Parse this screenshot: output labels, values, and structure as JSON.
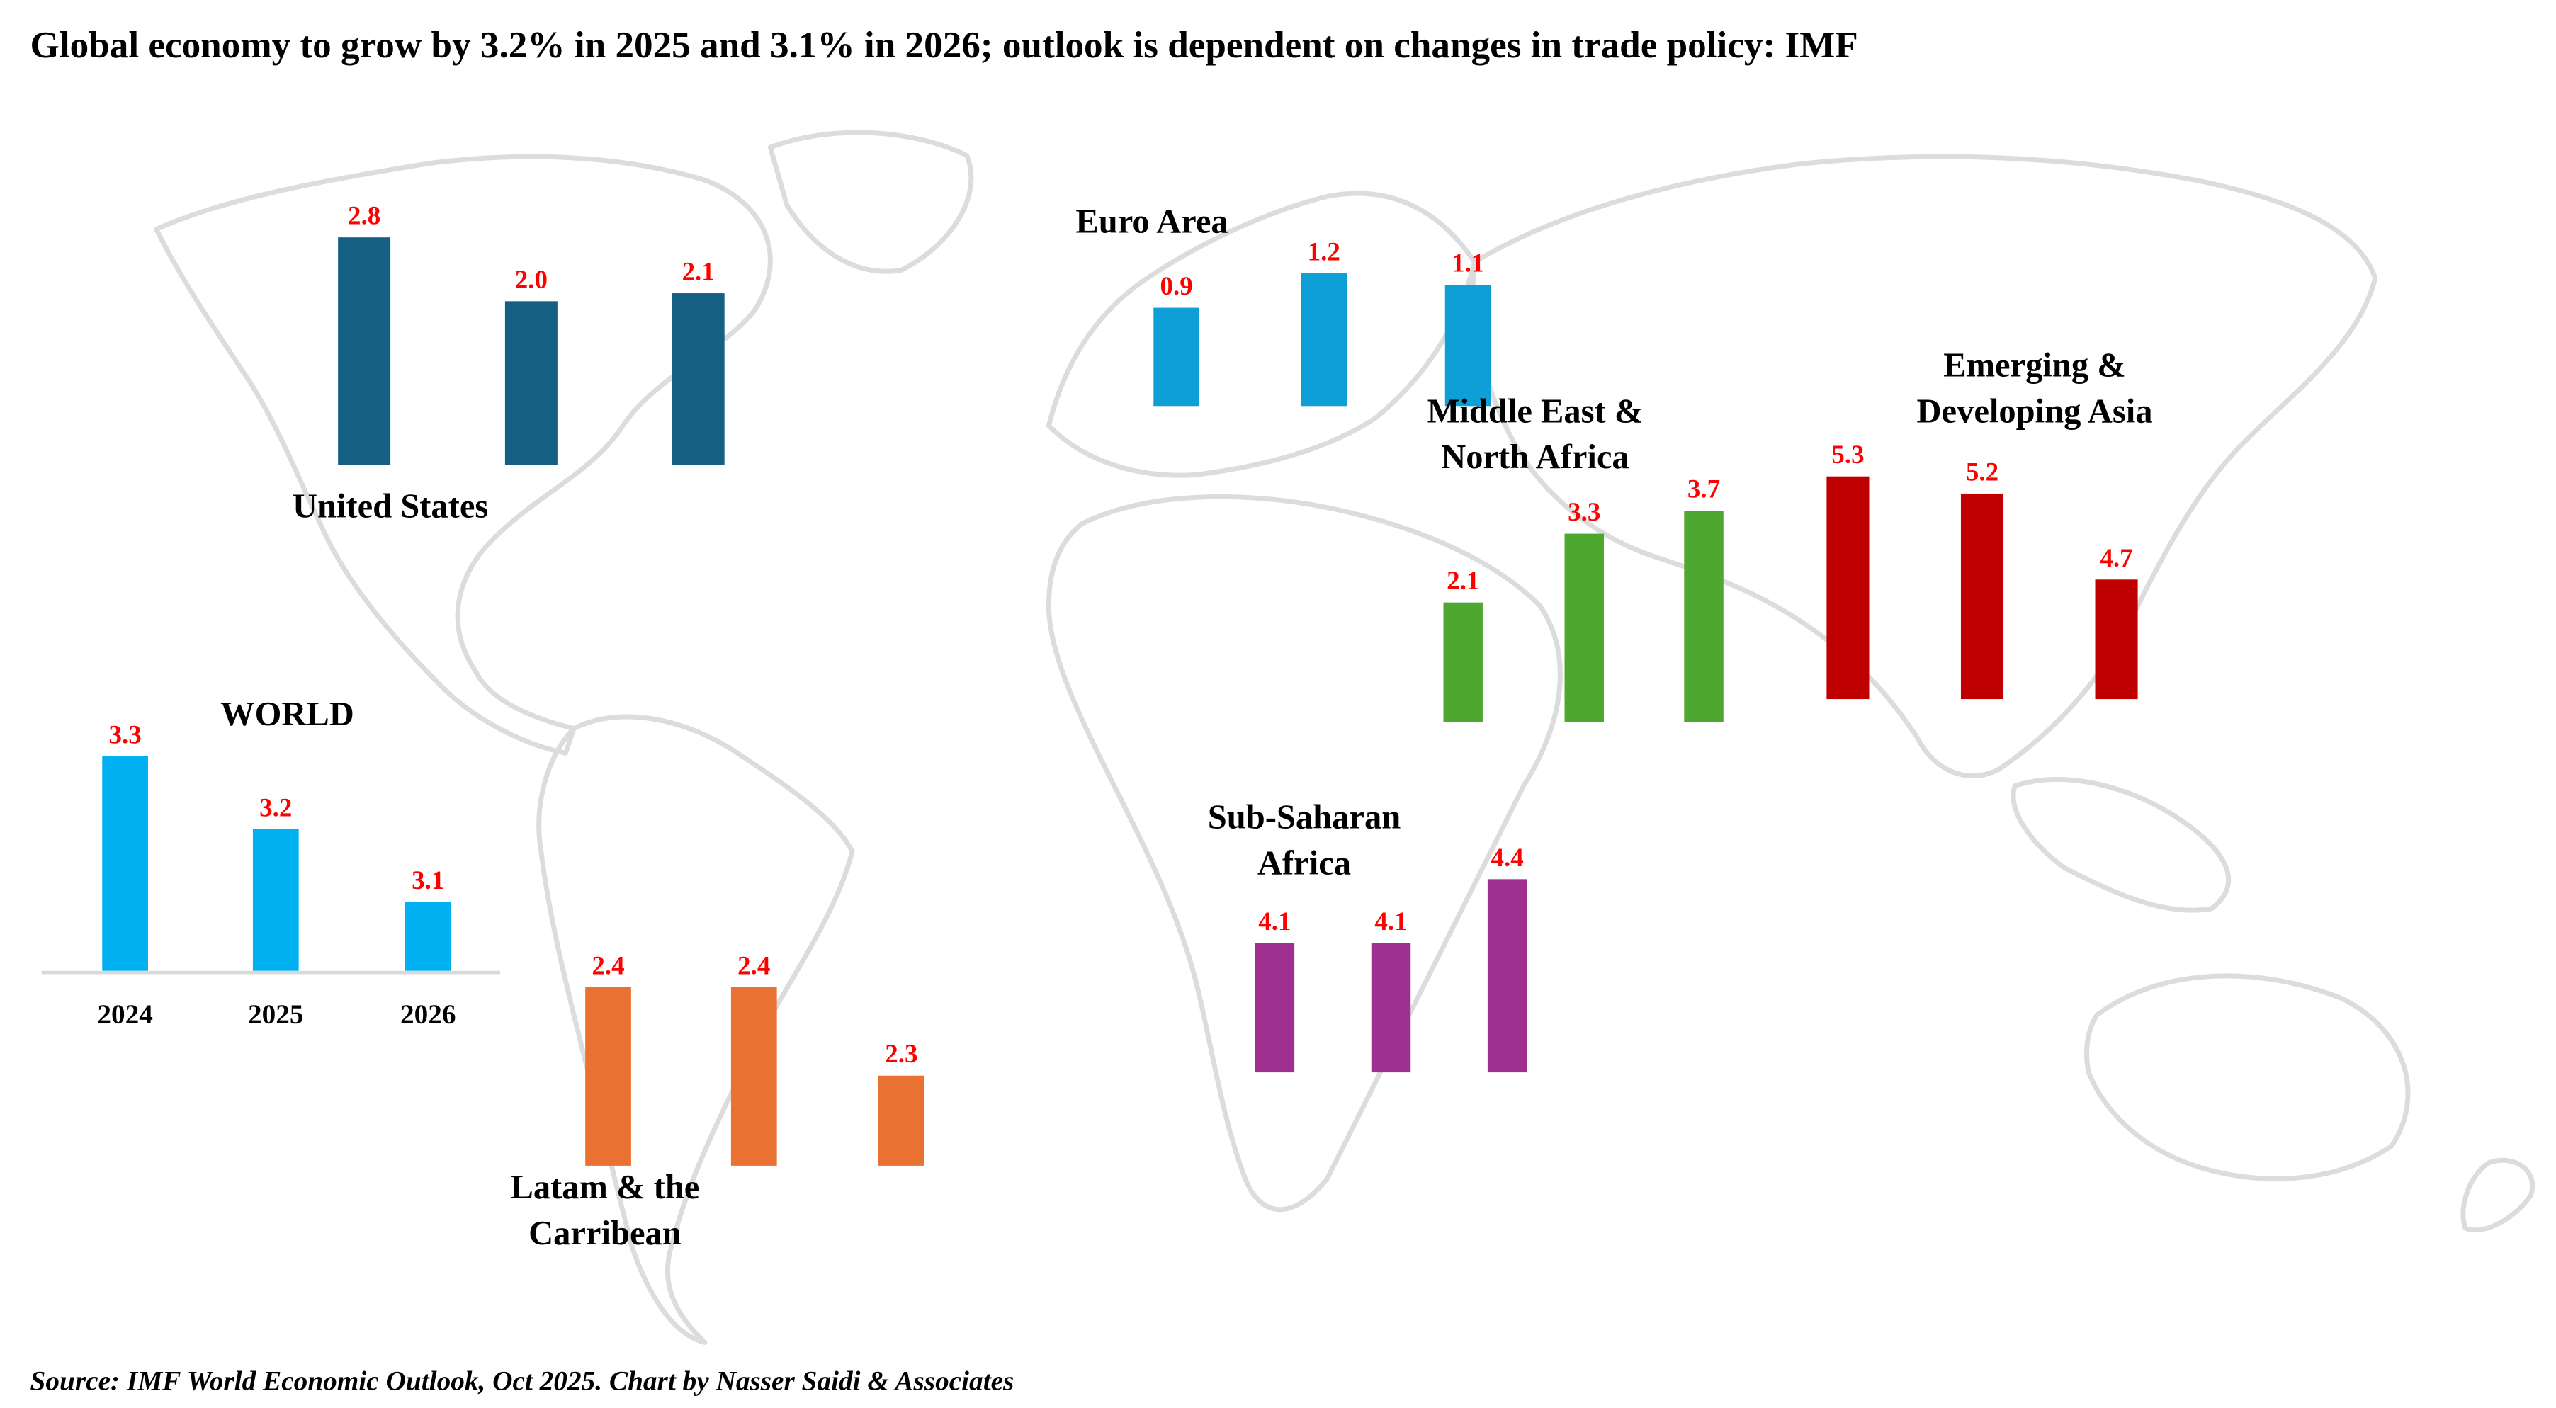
{
  "title": "Global economy to grow by 3.2% in 2025 and 3.1% in 2026; outlook is dependent on changes in trade policy: IMF",
  "source": "Source: IMF World Economic Outlook, Oct 2025. Chart by Nasser Saidi & Associates",
  "colors": {
    "label": "#FF0000",
    "map": "#dcdcdc"
  },
  "chart_data": [
    {
      "type": "bar",
      "region": "WORLD",
      "categories": [
        "2024",
        "2025",
        "2026"
      ],
      "values": [
        3.3,
        3.2,
        3.1
      ],
      "color": "#00B0F0",
      "show_axis": true
    },
    {
      "type": "bar",
      "region": "United States",
      "categories": [
        "2024",
        "2025",
        "2026"
      ],
      "values": [
        2.8,
        2.0,
        2.1
      ],
      "color": "#156082"
    },
    {
      "type": "bar",
      "region": "Euro Area",
      "categories": [
        "2024",
        "2025",
        "2026"
      ],
      "values": [
        0.9,
        1.2,
        1.1
      ],
      "color": "#0E9FD6"
    },
    {
      "type": "bar",
      "region": "Middle East & North Africa",
      "categories": [
        "2024",
        "2025",
        "2026"
      ],
      "values": [
        2.1,
        3.3,
        3.7
      ],
      "color": "#4EA72E"
    },
    {
      "type": "bar",
      "region": "Emerging & Developing Asia",
      "categories": [
        "2024",
        "2025",
        "2026"
      ],
      "values": [
        5.3,
        5.2,
        4.7
      ],
      "color": "#C00000"
    },
    {
      "type": "bar",
      "region": "Sub-Saharan Africa",
      "categories": [
        "2024",
        "2025",
        "2026"
      ],
      "values": [
        4.1,
        4.1,
        4.4
      ],
      "color": "#A0308F"
    },
    {
      "type": "bar",
      "region": "Latam & the Carribean",
      "categories": [
        "2024",
        "2025",
        "2026"
      ],
      "values": [
        2.4,
        2.4,
        2.3
      ],
      "color": "#E97132"
    }
  ],
  "region_labels": {
    "world": [
      "WORLD"
    ],
    "us": [
      "United States"
    ],
    "euro": [
      "Euro Area"
    ],
    "mena": [
      "Middle East &",
      "North Africa"
    ],
    "asia": [
      "Emerging &",
      "Developing Asia"
    ],
    "ssa": [
      "Sub-Saharan",
      "Africa"
    ],
    "latam": [
      "Latam & the",
      "Carribean"
    ]
  }
}
